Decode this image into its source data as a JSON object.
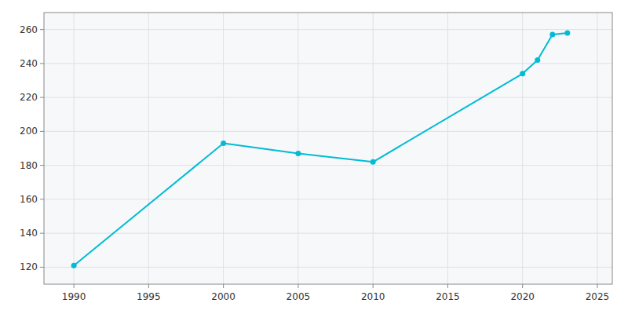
{
  "chart_data": {
    "type": "line",
    "x": [
      1990,
      2000,
      2005,
      2010,
      2020,
      2021,
      2022,
      2023
    ],
    "values": [
      121,
      193,
      187,
      182,
      234,
      242,
      257,
      258
    ],
    "color": "#00BCD4",
    "marker": "circle",
    "xlim": [
      1988,
      2026
    ],
    "xticks": [
      1990,
      1995,
      2000,
      2005,
      2010,
      2015,
      2020,
      2025
    ],
    "ylim": [
      110,
      270
    ],
    "yticks": [
      120,
      140,
      160,
      180,
      200,
      220,
      240,
      260
    ],
    "grid": true
  }
}
